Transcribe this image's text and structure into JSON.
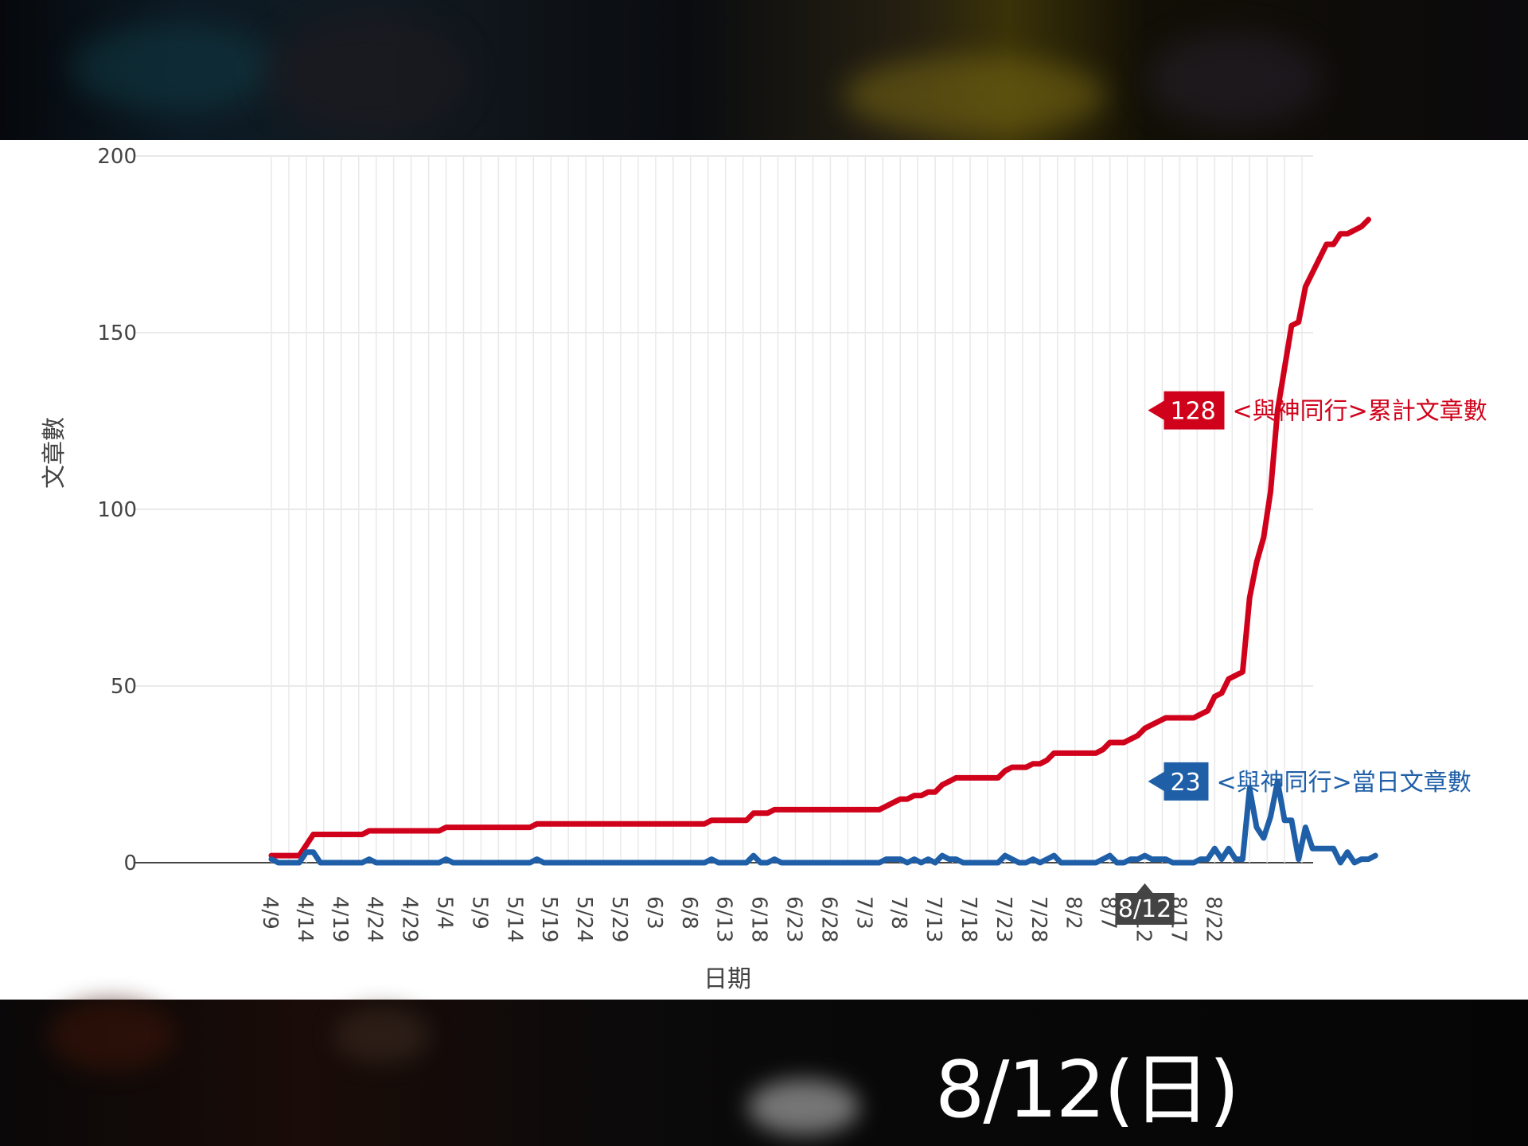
{
  "caption": "8/12(日)",
  "hover_label": "8/12",
  "colors": {
    "cumulative": "#d0021b",
    "daily": "#1f5fa8",
    "grid": "#e9e9e9",
    "hover_badge": "#444444"
  },
  "chart_data": {
    "type": "line",
    "title": "",
    "xlabel": "日期",
    "ylabel": "文章數",
    "ylim": [
      0,
      200
    ],
    "yticks": [
      0,
      50,
      100,
      150,
      200
    ],
    "x_tick_labels": [
      "4/9",
      "4/14",
      "4/19",
      "4/24",
      "4/29",
      "5/4",
      "5/9",
      "5/14",
      "5/19",
      "5/24",
      "5/29",
      "6/3",
      "6/8",
      "6/13",
      "6/18",
      "6/23",
      "6/28",
      "7/3",
      "7/8",
      "7/13",
      "7/18",
      "7/23",
      "7/28",
      "8/2",
      "8/7",
      "8/12",
      "8/17",
      "8/22"
    ],
    "x_start": "4/9",
    "grid": true,
    "series": [
      {
        "name": "<與神同行>累計文章數",
        "hover_value": "128",
        "values": [
          2,
          2,
          2,
          2,
          2,
          5,
          8,
          8,
          8,
          8,
          8,
          8,
          8,
          8,
          9,
          9,
          9,
          9,
          9,
          9,
          9,
          9,
          9,
          9,
          9,
          10,
          10,
          10,
          10,
          10,
          10,
          10,
          10,
          10,
          10,
          10,
          10,
          10,
          11,
          11,
          11,
          11,
          11,
          11,
          11,
          11,
          11,
          11,
          11,
          11,
          11,
          11,
          11,
          11,
          11,
          11,
          11,
          11,
          11,
          11,
          11,
          11,
          11,
          12,
          12,
          12,
          12,
          12,
          12,
          14,
          14,
          14,
          15,
          15,
          15,
          15,
          15,
          15,
          15,
          15,
          15,
          15,
          15,
          15,
          15,
          15,
          15,
          15,
          16,
          17,
          18,
          18,
          19,
          19,
          20,
          20,
          22,
          23,
          24,
          24,
          24,
          24,
          24,
          24,
          24,
          26,
          27,
          27,
          27,
          28,
          28,
          29,
          31,
          31,
          31,
          31,
          31,
          31,
          31,
          32,
          34,
          34,
          34,
          35,
          36,
          38,
          39,
          40,
          41,
          41,
          41,
          41,
          41,
          42,
          43,
          47,
          48,
          52,
          53,
          54,
          75,
          85,
          92,
          105,
          128,
          140,
          152,
          153,
          163,
          167,
          171,
          175,
          175,
          178,
          178,
          179,
          180,
          182
        ]
      },
      {
        "name": "<與神同行>當日文章數",
        "hover_value": "23",
        "values": [
          1,
          0,
          0,
          0,
          0,
          3,
          3,
          0,
          0,
          0,
          0,
          0,
          0,
          0,
          1,
          0,
          0,
          0,
          0,
          0,
          0,
          0,
          0,
          0,
          0,
          1,
          0,
          0,
          0,
          0,
          0,
          0,
          0,
          0,
          0,
          0,
          0,
          0,
          1,
          0,
          0,
          0,
          0,
          0,
          0,
          0,
          0,
          0,
          0,
          0,
          0,
          0,
          0,
          0,
          0,
          0,
          0,
          0,
          0,
          0,
          0,
          0,
          0,
          1,
          0,
          0,
          0,
          0,
          0,
          2,
          0,
          0,
          1,
          0,
          0,
          0,
          0,
          0,
          0,
          0,
          0,
          0,
          0,
          0,
          0,
          0,
          0,
          0,
          1,
          1,
          1,
          0,
          1,
          0,
          1,
          0,
          2,
          1,
          1,
          0,
          0,
          0,
          0,
          0,
          0,
          2,
          1,
          0,
          0,
          1,
          0,
          1,
          2,
          0,
          0,
          0,
          0,
          0,
          0,
          1,
          2,
          0,
          0,
          1,
          1,
          2,
          1,
          1,
          1,
          0,
          0,
          0,
          0,
          1,
          1,
          4,
          1,
          4,
          1,
          1,
          21,
          10,
          7,
          13,
          23,
          12,
          12,
          1,
          10,
          4,
          4,
          4,
          4,
          0,
          3,
          0,
          1,
          1,
          2
        ]
      }
    ]
  }
}
